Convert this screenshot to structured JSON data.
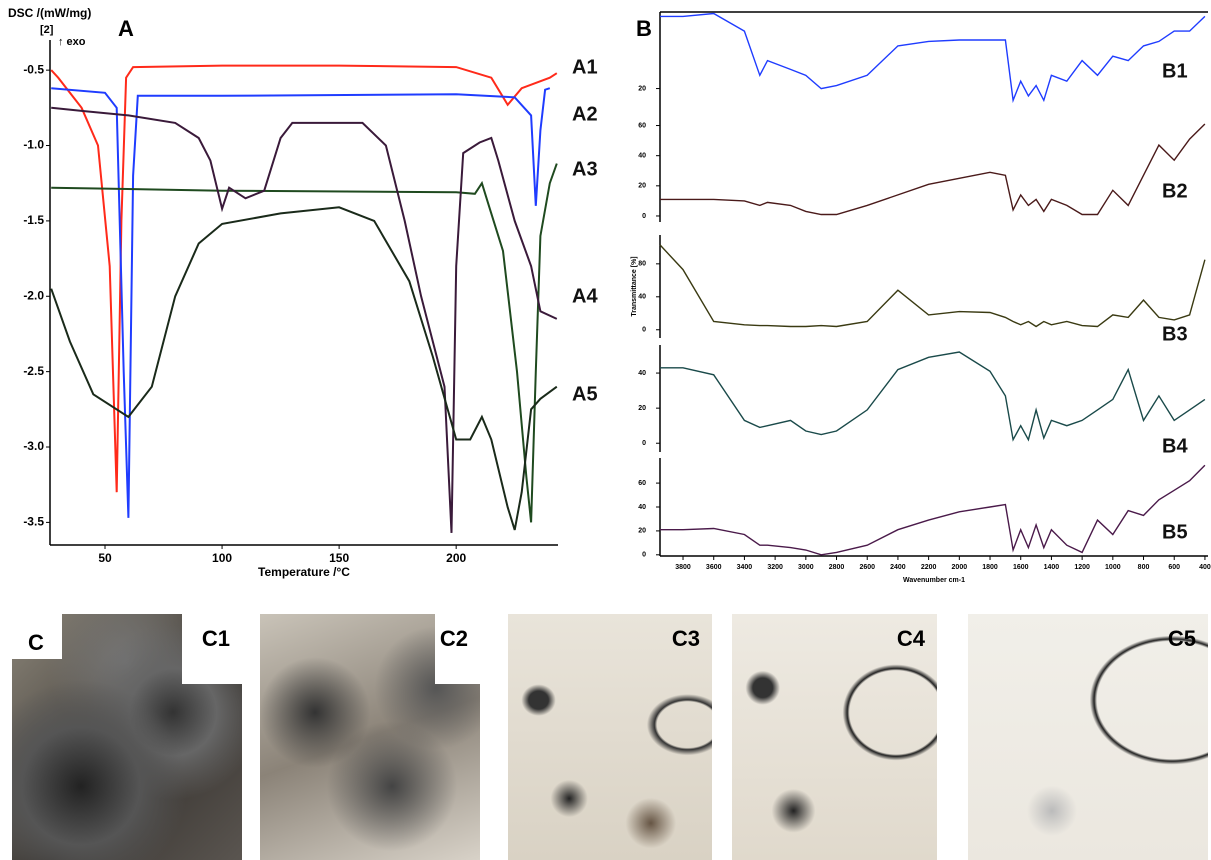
{
  "chart_data": [
    {
      "type": "line",
      "panel_label": "A",
      "ylabel": "DSC /(mW/mg)",
      "annotations": [
        "[2]",
        "↑ exo"
      ],
      "xlabel": "Temperature /°C",
      "xlim": [
        26.5,
        243.5
      ],
      "ylim": [
        -3.65,
        -0.3
      ],
      "xticks": [
        50,
        100,
        150,
        200
      ],
      "yticks": [
        -0.5,
        {
          "value": -1,
          "label": "-1.0"
        },
        -1.5,
        {
          "value": -2,
          "label": "-2.0"
        },
        -2.5,
        {
          "value": -3,
          "label": "-3.0"
        },
        -3.5
      ],
      "series": [
        {
          "name": "A1",
          "color": "#ff2a1a",
          "x": [
            27,
            30,
            40,
            47,
            52,
            55,
            57,
            59,
            62,
            100,
            150,
            200,
            215,
            222,
            228,
            240,
            243
          ],
          "values": [
            -0.5,
            -0.55,
            -0.75,
            -1.0,
            -1.8,
            -3.3,
            -1.5,
            -0.55,
            -0.48,
            -0.47,
            -0.47,
            -0.48,
            -0.55,
            -0.73,
            -0.62,
            -0.55,
            -0.52
          ]
        },
        {
          "name": "A2",
          "color": "#1f3cff",
          "x": [
            27,
            50,
            55,
            58,
            60,
            62,
            64,
            100,
            200,
            225,
            232,
            234,
            236,
            238,
            240
          ],
          "values": [
            -0.62,
            -0.65,
            -0.75,
            -2.5,
            -3.47,
            -1.2,
            -0.67,
            -0.67,
            -0.66,
            -0.68,
            -0.8,
            -1.4,
            -0.9,
            -0.63,
            -0.62
          ]
        },
        {
          "name": "A3",
          "color": "#1f4a1f",
          "x": [
            27,
            100,
            200,
            208,
            211,
            214,
            220,
            226,
            230,
            232,
            234,
            236,
            240,
            243
          ],
          "values": [
            -1.28,
            -1.3,
            -1.31,
            -1.32,
            -1.25,
            -1.4,
            -1.7,
            -2.5,
            -3.2,
            -3.5,
            -2.5,
            -1.6,
            -1.25,
            -1.12
          ]
        },
        {
          "name": "A4",
          "color": "#3a1a3a",
          "x": [
            27,
            40,
            60,
            80,
            90,
            95,
            100,
            103,
            110,
            118,
            125,
            130,
            160,
            170,
            178,
            185,
            190,
            195,
            198,
            200,
            203,
            210,
            215,
            218,
            225,
            232,
            236,
            243
          ],
          "values": [
            -0.75,
            -0.77,
            -0.8,
            -0.85,
            -0.95,
            -1.1,
            -1.42,
            -1.28,
            -1.35,
            -1.3,
            -0.95,
            -0.85,
            -0.85,
            -1.0,
            -1.5,
            -2.0,
            -2.3,
            -2.6,
            -3.57,
            -1.8,
            -1.05,
            -0.98,
            -0.95,
            -1.1,
            -1.5,
            -1.8,
            -2.1,
            -2.15
          ]
        },
        {
          "name": "A5",
          "color": "#1a2a1a",
          "x": [
            27,
            35,
            45,
            60,
            70,
            80,
            90,
            100,
            125,
            150,
            165,
            180,
            190,
            200,
            206,
            211,
            215,
            222,
            225,
            228,
            232,
            236,
            243
          ],
          "values": [
            -1.95,
            -2.3,
            -2.65,
            -2.8,
            -2.6,
            -2.0,
            -1.65,
            -1.52,
            -1.45,
            -1.41,
            -1.5,
            -1.9,
            -2.4,
            -2.95,
            -2.95,
            -2.8,
            -2.95,
            -3.4,
            -3.55,
            -3.3,
            -2.75,
            -2.68,
            -2.6
          ]
        }
      ]
    },
    {
      "type": "line",
      "panel_label": "B",
      "xlim": [
        3950,
        380
      ],
      "ylim": [
        0,
        72
      ],
      "yticks": [
        20
      ],
      "x": [
        3950,
        3800,
        3600,
        3400,
        3300,
        3250,
        3100,
        3000,
        2900,
        2800,
        2600,
        2400,
        2200,
        2000,
        1800,
        1700,
        1650,
        1600,
        1550,
        1500,
        1450,
        1400,
        1300,
        1200,
        1100,
        1000,
        900,
        800,
        700,
        600,
        500,
        400
      ],
      "series": [
        {
          "name": "B1",
          "color": "#1f3cff",
          "values": [
            69,
            69,
            71,
            59,
            29,
            39,
            33,
            29,
            20,
            22,
            29,
            49,
            52,
            53,
            53,
            53,
            12,
            25,
            15,
            22,
            12,
            29,
            25,
            39,
            29,
            42,
            39,
            49,
            52,
            59,
            59,
            69
          ]
        }
      ]
    },
    {
      "type": "line",
      "xlim": [
        3950,
        380
      ],
      "ylim": [
        -4,
        65
      ],
      "yticks": [
        0,
        20,
        40,
        60
      ],
      "x": [
        3950,
        3800,
        3600,
        3400,
        3300,
        3250,
        3100,
        3000,
        2900,
        2800,
        2600,
        2400,
        2200,
        2000,
        1800,
        1700,
        1650,
        1600,
        1550,
        1500,
        1450,
        1400,
        1300,
        1200,
        1100,
        1000,
        900,
        800,
        700,
        600,
        500,
        400
      ],
      "series": [
        {
          "name": "B2",
          "color": "#4a1a1a",
          "values": [
            11,
            11,
            11,
            10,
            7,
            9,
            7,
            3,
            1,
            1,
            7,
            14,
            21,
            25,
            29,
            27,
            4,
            14,
            7,
            11,
            3,
            11,
            7,
            1,
            1,
            17,
            7,
            27,
            47,
            37,
            51,
            61
          ]
        }
      ]
    },
    {
      "type": "line",
      "ylabel": "Transmittance [%]",
      "xlim": [
        3950,
        380
      ],
      "ylim": [
        -10,
        115
      ],
      "yticks": [
        0,
        40,
        80
      ],
      "x": [
        3950,
        3800,
        3600,
        3400,
        3300,
        3250,
        3100,
        3000,
        2900,
        2800,
        2600,
        2400,
        2200,
        2000,
        1800,
        1700,
        1650,
        1600,
        1550,
        1500,
        1450,
        1400,
        1300,
        1200,
        1100,
        1000,
        900,
        800,
        700,
        600,
        500,
        400
      ],
      "series": [
        {
          "name": "B3",
          "color": "#3a3a12",
          "values": [
            103,
            73,
            10,
            6,
            5,
            5,
            4,
            4,
            5,
            4,
            10,
            48,
            18,
            22,
            21,
            15,
            10,
            6,
            10,
            4,
            10,
            6,
            10,
            5,
            4,
            18,
            15,
            36,
            15,
            12,
            18,
            85
          ]
        }
      ]
    },
    {
      "type": "line",
      "xlim": [
        3950,
        380
      ],
      "ylim": [
        -5,
        56
      ],
      "yticks": [
        0,
        20,
        40
      ],
      "x": [
        3950,
        3800,
        3600,
        3400,
        3300,
        3250,
        3100,
        3000,
        2900,
        2800,
        2600,
        2400,
        2200,
        2000,
        1800,
        1700,
        1650,
        1600,
        1550,
        1500,
        1450,
        1400,
        1300,
        1200,
        1100,
        1000,
        900,
        800,
        700,
        600,
        500,
        400
      ],
      "series": [
        {
          "name": "B4",
          "color": "#1a4a4a",
          "values": [
            43,
            43,
            39,
            13,
            9,
            10,
            13,
            7,
            5,
            7,
            19,
            42,
            49,
            52,
            41,
            27,
            2,
            10,
            2,
            19,
            3,
            13,
            10,
            13,
            19,
            25,
            42,
            13,
            27,
            13,
            19,
            25
          ]
        }
      ]
    },
    {
      "type": "line",
      "xlabel": "Wavenumber cm-1",
      "xlim": [
        3950,
        380
      ],
      "ylim": [
        -1,
        81
      ],
      "yticks": [
        0,
        20,
        40,
        60
      ],
      "xticks": [
        3800,
        3600,
        3400,
        3200,
        3000,
        2800,
        2600,
        2400,
        2200,
        2000,
        1800,
        1600,
        1400,
        1200,
        1000,
        800,
        600,
        400
      ],
      "x": [
        3950,
        3800,
        3600,
        3400,
        3300,
        3250,
        3100,
        3000,
        2900,
        2800,
        2600,
        2400,
        2200,
        2000,
        1800,
        1700,
        1650,
        1600,
        1550,
        1500,
        1450,
        1400,
        1300,
        1200,
        1100,
        1000,
        900,
        800,
        700,
        600,
        500,
        400
      ],
      "series": [
        {
          "name": "B5",
          "color": "#4a1a4a",
          "values": [
            21,
            21,
            22,
            17,
            8,
            8,
            6,
            4,
            0,
            2,
            8,
            21,
            29,
            36,
            40,
            42,
            4,
            21,
            6,
            25,
            6,
            21,
            8,
            2,
            29,
            17,
            37,
            33,
            46,
            54,
            62,
            75
          ]
        }
      ]
    }
  ],
  "micrographs": {
    "panel_label": "C",
    "images": [
      {
        "label": "C1"
      },
      {
        "label": "C2"
      },
      {
        "label": "C3"
      },
      {
        "label": "C4"
      },
      {
        "label": "C5"
      }
    ]
  }
}
